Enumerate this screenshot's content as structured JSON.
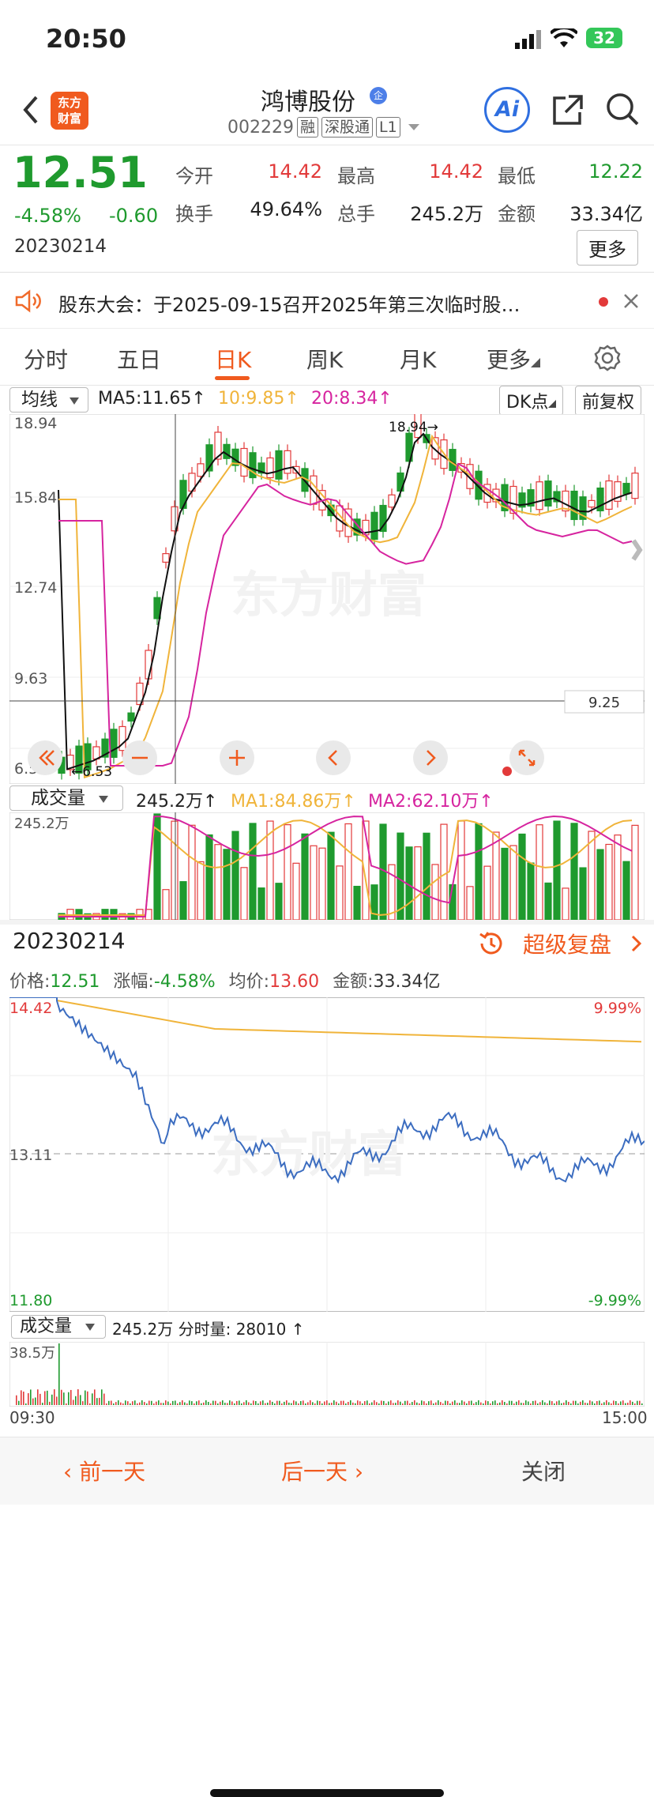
{
  "status": {
    "time": "20:50",
    "battery": "32"
  },
  "header": {
    "back_icon": "chevron-left-icon",
    "logo_text_1": "东方",
    "logo_text_2": "财富",
    "name": "鸿博股份",
    "badge": "企",
    "code": "002229",
    "chips": [
      "融",
      "深股通",
      "L1"
    ],
    "ai_label": "Ai"
  },
  "quote": {
    "price": "12.51",
    "change_pct": "-4.58%",
    "change": "-0.60",
    "date": "20230214",
    "fields": [
      {
        "label": "今开",
        "value": "14.42",
        "color": "red"
      },
      {
        "label": "最高",
        "value": "14.42",
        "color": "red"
      },
      {
        "label": "最低",
        "value": "12.22",
        "color": "green"
      },
      {
        "label": "换手",
        "value": "49.64%",
        "color": "dark"
      },
      {
        "label": "总手",
        "value": "245.2万",
        "color": "dark"
      },
      {
        "label": "金额",
        "value": "33.34亿",
        "color": "dark"
      }
    ],
    "more_button": "更多"
  },
  "notice": {
    "text": "股东大会：于2025-09-15召开2025年第三次临时股…"
  },
  "tabs": {
    "items": [
      "分时",
      "五日",
      "日K",
      "周K",
      "月K",
      "更多"
    ],
    "active": 2
  },
  "kline": {
    "indicator_select": "均线",
    "ma5": "MA5:11.65↑",
    "ma10": "10:9.85↑",
    "ma20": "20:8.34↑",
    "dk_button": "DK点",
    "adjust_button": "前复权",
    "y_labels": [
      "18.94",
      "15.84",
      "12.74",
      "9.63",
      "6.53"
    ],
    "high_marker": "18.94→",
    "low_marker": "←6.53",
    "crosshair_price": "9.25",
    "watermark": "东方财富"
  },
  "volume": {
    "select": "成交量",
    "value": "245.2万↑",
    "ma1": "MA1:84.86万↑",
    "ma2": "MA2:62.10万↑",
    "y_label": "245.2万"
  },
  "replay": {
    "date": "20230214",
    "super_replay": "超级复盘",
    "price_label": "价格:",
    "price": "12.51",
    "chg_label": "涨幅:",
    "chg": "-4.58%",
    "avg_label": "均价:",
    "avg": "13.60",
    "amt_label": "金额:",
    "amt": "33.34亿",
    "y_top": "14.42",
    "y_mid": "13.11",
    "y_bot": "11.80",
    "pct_top": "9.99%",
    "pct_bot": "-9.99%",
    "vol_select": "成交量",
    "vol_info": "245.2万 分时量: 28010 ↑",
    "vol_y": "38.5万",
    "t_start": "09:30",
    "t_end": "15:00",
    "watermark": "东方财富",
    "prev_day": "前一天",
    "next_day": "后一天",
    "close": "关闭"
  }
}
